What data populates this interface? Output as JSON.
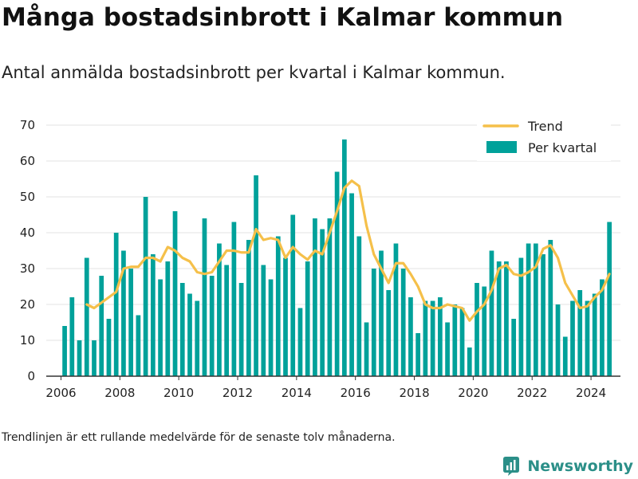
{
  "header": {
    "title": "Många bostadsinbrott i Kalmar kommun",
    "subtitle": "Antal anmälda bostadsinbrott per kvartal i Kalmar kommun."
  },
  "footer": {
    "note": "Trendlinjen är ett rullande medelvärde för de senaste tolv månaderna.",
    "brand": "Newsworthy",
    "brand_icon": "newsworthy-logo-icon"
  },
  "colors": {
    "bars": "#00a19a",
    "trend": "#f5c04a",
    "grid": "#e3e3e3",
    "axis": "#333333",
    "text": "#222222"
  },
  "chart_data": {
    "type": "bar",
    "x_unit": "quarter",
    "start": "2006 Q1",
    "xlim": [
      2005.5,
      2025.0
    ],
    "ylim": [
      0,
      70
    ],
    "xticks": [
      "2006",
      "2008",
      "2010",
      "2012",
      "2014",
      "2016",
      "2018",
      "2020",
      "2022",
      "2024"
    ],
    "yticks": [
      "0",
      "10",
      "20",
      "30",
      "40",
      "50",
      "60",
      "70"
    ],
    "grid": true,
    "legend_position": "top-right",
    "series": [
      {
        "name": "Per kvartal",
        "type": "bar",
        "values": [
          14,
          22,
          10,
          33,
          10,
          28,
          16,
          40,
          35,
          30,
          17,
          50,
          34,
          27,
          32,
          46,
          26,
          23,
          21,
          44,
          28,
          37,
          31,
          43,
          26,
          38,
          56,
          31,
          27,
          39,
          33,
          45,
          19,
          32,
          44,
          41,
          44,
          57,
          66,
          51,
          39,
          15,
          30,
          35,
          24,
          37,
          30,
          22,
          12,
          21,
          21,
          22,
          15,
          20,
          19,
          8,
          26,
          25,
          35,
          32,
          32,
          16,
          33,
          37,
          37,
          34,
          38,
          20,
          11,
          21,
          24,
          21,
          23,
          27,
          43
        ]
      },
      {
        "name": "Trend",
        "type": "line",
        "start": "2006 Q4",
        "values": [
          20,
          19,
          20.5,
          22,
          23.5,
          30,
          30.5,
          30.5,
          33,
          33,
          32,
          36,
          35,
          33,
          32,
          29,
          28.5,
          29,
          32,
          35,
          35,
          34.5,
          34.5,
          41,
          38,
          38.5,
          38,
          33,
          36,
          34,
          32.5,
          35,
          34,
          40,
          46,
          52.5,
          54.5,
          53,
          42,
          34,
          30,
          26,
          31.5,
          31.5,
          28.5,
          25,
          20,
          19,
          19,
          20,
          19.5,
          19,
          15.5,
          18,
          20,
          24,
          30,
          31,
          28.5,
          28,
          29,
          30.5,
          35.5,
          36.5,
          33,
          26,
          22.5,
          19,
          19.5,
          22,
          24,
          28.5
        ]
      }
    ]
  }
}
